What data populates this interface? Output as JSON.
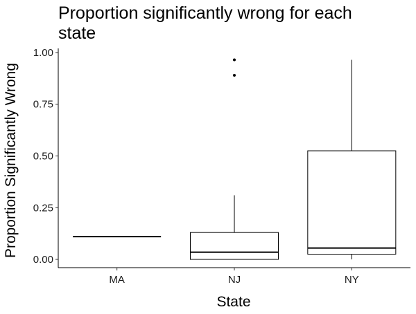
{
  "chart_data": {
    "type": "boxplot",
    "title_lines": [
      "Proportion significantly wrong for each",
      "state"
    ],
    "xlabel": "State",
    "ylabel": "Proportion Significantly Wrong",
    "categories": [
      "MA",
      "NJ",
      "NY"
    ],
    "ylim": [
      -0.04,
      1.02
    ],
    "y_ticks": [
      0.0,
      0.25,
      0.5,
      0.75,
      1.0
    ],
    "y_tick_labels": [
      "0.00",
      "0.25",
      "0.50",
      "0.75",
      "1.00"
    ],
    "grid": false,
    "legend": "none",
    "boxes": [
      {
        "category": "MA",
        "whisker_low": 0.11,
        "q1": 0.11,
        "median": 0.11,
        "q3": 0.11,
        "whisker_high": 0.11,
        "outliers": []
      },
      {
        "category": "NJ",
        "whisker_low": 0.0,
        "q1": 0.0,
        "median": 0.035,
        "q3": 0.13,
        "whisker_high": 0.31,
        "outliers": [
          0.89,
          0.965
        ]
      },
      {
        "category": "NY",
        "whisker_low": 0.0,
        "q1": 0.025,
        "median": 0.055,
        "q3": 0.525,
        "whisker_high": 0.965,
        "outliers": []
      }
    ]
  }
}
